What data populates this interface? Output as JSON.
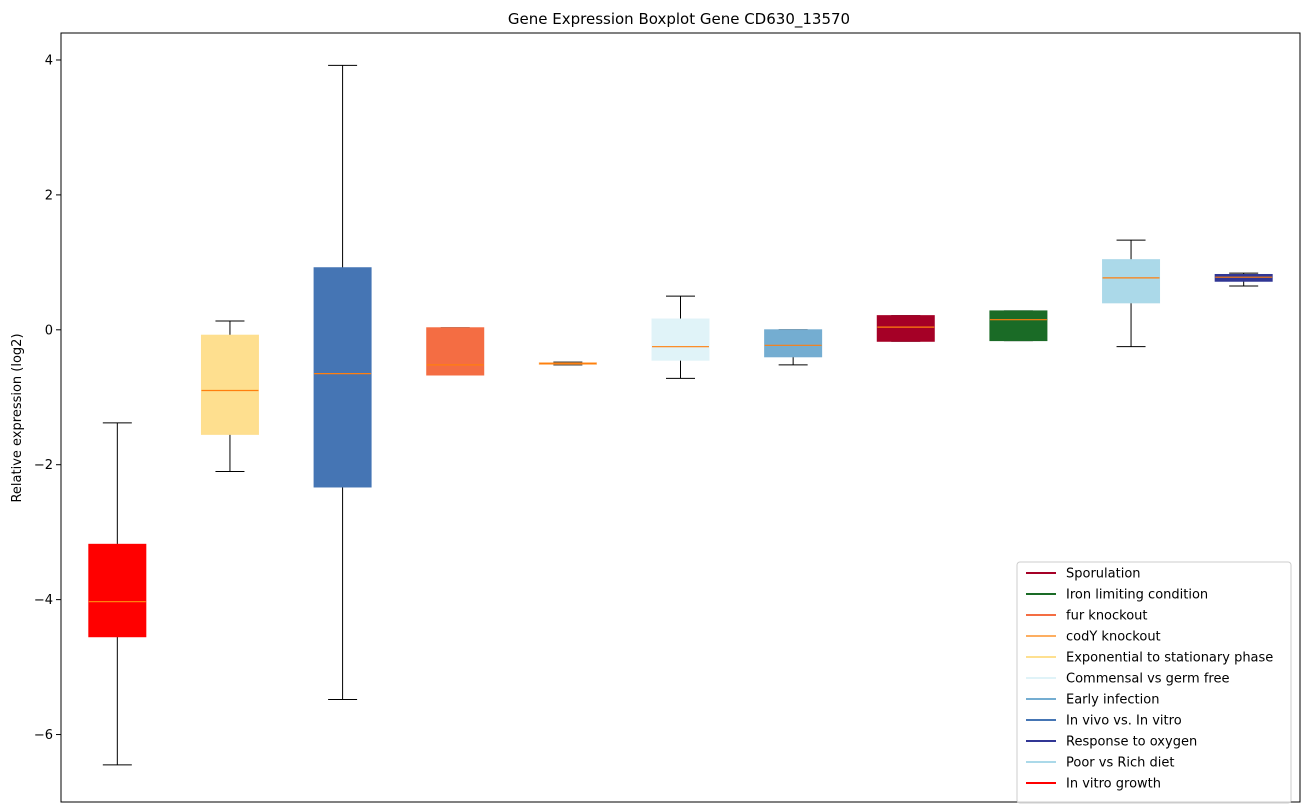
{
  "chart_data": {
    "type": "boxplot",
    "title": "Gene Expression Boxplot Gene CD630_13570",
    "xlabel": "",
    "ylabel": "Relative expression (log2)",
    "ylim": [
      -7,
      4.4
    ],
    "yticks": [
      -6,
      -4,
      -2,
      0,
      2,
      4
    ],
    "grid": false,
    "legend_position": "lower-right",
    "boxes": [
      {
        "name": "In vitro growth",
        "color": "#ff0000",
        "whislo": -6.45,
        "q1": -4.55,
        "med": -4.03,
        "q3": -3.18,
        "whishi": -1.38
      },
      {
        "name": "Exponential to stationary phase",
        "color": "#fedf8f",
        "whislo": -2.1,
        "q1": -1.55,
        "med": -0.9,
        "q3": -0.08,
        "whishi": 0.13
      },
      {
        "name": "In vivo vs. In vitro",
        "color": "#4575b4",
        "whislo": -5.48,
        "q1": -2.33,
        "med": -0.65,
        "q3": 0.92,
        "whishi": 3.92
      },
      {
        "name": "fur knockout",
        "color": "#f46d43",
        "whislo": -0.67,
        "q1": -0.67,
        "med": -0.52,
        "q3": 0.03,
        "whishi": 0.03
      },
      {
        "name": "codY knockout",
        "color": "#fdae61",
        "whislo": -0.52,
        "q1": -0.51,
        "med": -0.5,
        "q3": -0.49,
        "whishi": -0.48
      },
      {
        "name": "Commensal vs germ free",
        "color": "#e0f3f8",
        "whislo": -0.72,
        "q1": -0.45,
        "med": -0.25,
        "q3": 0.16,
        "whishi": 0.5
      },
      {
        "name": "Early infection",
        "color": "#74add1",
        "whislo": -0.52,
        "q1": -0.4,
        "med": -0.23,
        "q3": 0.0,
        "whishi": 0.0
      },
      {
        "name": "Sporulation",
        "color": "#a50026",
        "whislo": -0.17,
        "q1": -0.17,
        "med": 0.04,
        "q3": 0.21,
        "whishi": 0.21
      },
      {
        "name": "Iron limiting condition",
        "color": "#1a6b26",
        "whislo": -0.16,
        "q1": -0.16,
        "med": 0.15,
        "q3": 0.28,
        "whishi": 0.28
      },
      {
        "name": "Poor vs Rich diet",
        "color": "#abd9e9",
        "whislo": -0.25,
        "q1": 0.4,
        "med": 0.77,
        "q3": 1.04,
        "whishi": 1.33
      },
      {
        "name": "Response to oxygen",
        "color": "#313695",
        "whislo": 0.65,
        "q1": 0.72,
        "med": 0.78,
        "q3": 0.82,
        "whishi": 0.84
      }
    ],
    "median_color": "#ff7f0e",
    "legend": [
      {
        "label": "Sporulation",
        "color": "#a50026"
      },
      {
        "label": "Iron limiting condition",
        "color": "#1a6b26"
      },
      {
        "label": "fur knockout",
        "color": "#f46d43"
      },
      {
        "label": "codY knockout",
        "color": "#fdae61"
      },
      {
        "label": "Exponential to stationary phase",
        "color": "#fee090"
      },
      {
        "label": "Commensal vs germ free",
        "color": "#e0f3f8"
      },
      {
        "label": "Early infection",
        "color": "#74add1"
      },
      {
        "label": "In vivo vs. In vitro",
        "color": "#4575b4"
      },
      {
        "label": "Response to oxygen",
        "color": "#313695"
      },
      {
        "label": "Poor vs Rich diet",
        "color": "#abd9e9"
      },
      {
        "label": "In vitro growth",
        "color": "#ff0000"
      }
    ]
  }
}
